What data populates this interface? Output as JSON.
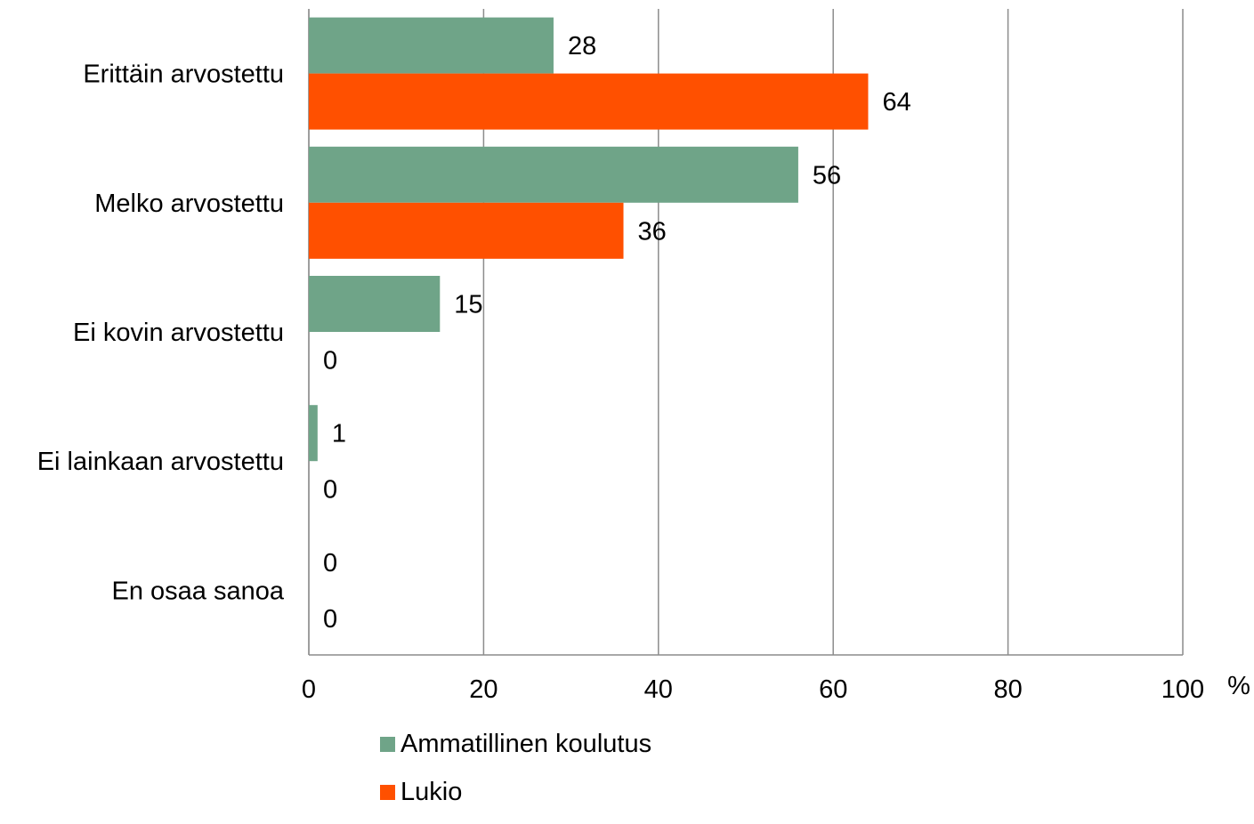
{
  "chart_data": {
    "type": "bar",
    "orientation": "horizontal",
    "categories": [
      "Erittäin arvostettu",
      "Melko arvostettu",
      "Ei kovin arvostettu",
      "Ei lainkaan arvostettu",
      "En osaa sanoa"
    ],
    "series": [
      {
        "name": "Ammatillinen koulutus",
        "color": "#6fa488",
        "values": [
          28,
          56,
          15,
          1,
          0
        ]
      },
      {
        "name": "Lukio",
        "color": "#ff5000",
        "values": [
          64,
          36,
          0,
          0,
          0
        ]
      }
    ],
    "xlim": [
      0,
      100
    ],
    "xticks": [
      "0",
      "20",
      "40",
      "60",
      "80",
      "100"
    ],
    "xticks_values": [
      0,
      20,
      40,
      60,
      80,
      100
    ],
    "x_unit": "%",
    "grid": true,
    "legend_position": "bottom"
  }
}
